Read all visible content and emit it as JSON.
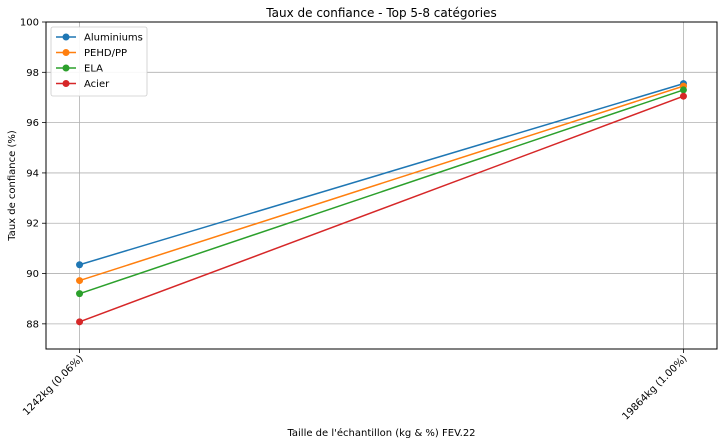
{
  "chart_data": {
    "type": "line",
    "title": "Taux de confiance - Top 5-8 catégories",
    "xlabel": "Taille de l'échantillon (kg & %) FEV.22",
    "ylabel": "Taux de confiance (%)",
    "categories": [
      "1242kg (0.06%)",
      "19864kg (1.00%)"
    ],
    "ylim": [
      87,
      100
    ],
    "yticks": [
      88,
      90,
      92,
      94,
      96,
      98,
      100
    ],
    "grid": true,
    "legend_position": "top-left",
    "series": [
      {
        "name": "Aluminiums",
        "color": "#1f77b4",
        "values": [
          90.35,
          97.55
        ]
      },
      {
        "name": "PEHD/PP",
        "color": "#ff7f0e",
        "values": [
          89.72,
          97.45
        ]
      },
      {
        "name": "ELA",
        "color": "#2ca02c",
        "values": [
          89.2,
          97.3
        ]
      },
      {
        "name": "Acier",
        "color": "#d62728",
        "values": [
          88.08,
          97.05
        ]
      }
    ]
  }
}
